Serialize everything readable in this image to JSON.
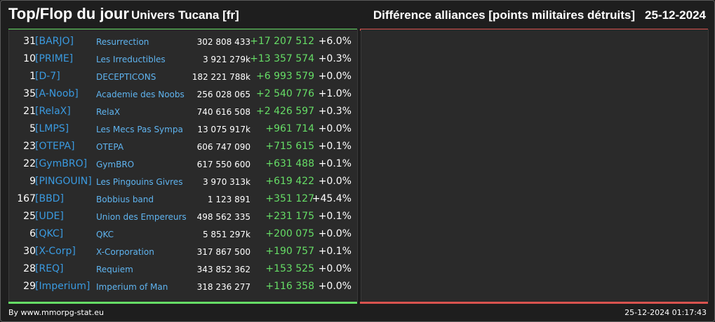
{
  "header": {
    "title": "Top/Flop du jour",
    "universe": "Univers Tucana [fr]",
    "subtitle": "Différence alliances [points militaires détruits]",
    "date": "25-12-2024"
  },
  "colors": {
    "top_bar": "#66dd66",
    "flop_bar": "#d9534f",
    "tag": "#3a9ae0",
    "name": "#5fb4f0",
    "positive": "#66dd66"
  },
  "top": [
    {
      "rank": "31",
      "tag": "[BARJO]",
      "name": "Resurrection",
      "points": "302 808 433",
      "diff": "+17 207 512",
      "pct": "+6.0%"
    },
    {
      "rank": "10",
      "tag": "[PRIME]",
      "name": "Les Irreductibles",
      "points": "3 921 279k",
      "diff": "+13 357 574",
      "pct": "+0.3%"
    },
    {
      "rank": "1",
      "tag": "[D-7]",
      "name": "DECEPTICONS",
      "points": "182 221 788k",
      "diff": "+6 993 579",
      "pct": "+0.0%"
    },
    {
      "rank": "35",
      "tag": "[A-Noob]",
      "name": "Academie des Noobs",
      "points": "256 028 065",
      "diff": "+2 540 776",
      "pct": "+1.0%"
    },
    {
      "rank": "21",
      "tag": "[RelaX]",
      "name": "RelaX",
      "points": "740 616 508",
      "diff": "+2 426 597",
      "pct": "+0.3%"
    },
    {
      "rank": "5",
      "tag": "[LMPS]",
      "name": "Les Mecs Pas Sympa",
      "points": "13 075 917k",
      "diff": "+961 714",
      "pct": "+0.0%"
    },
    {
      "rank": "23",
      "tag": "[OTEPA]",
      "name": "OTEPA",
      "points": "606 747 090",
      "diff": "+715 615",
      "pct": "+0.1%"
    },
    {
      "rank": "22",
      "tag": "[GymBRO]",
      "name": "GymBRO",
      "points": "617 550 600",
      "diff": "+631 488",
      "pct": "+0.1%"
    },
    {
      "rank": "9",
      "tag": "[PINGOUIN]",
      "name": "Les Pingouins Givres",
      "points": "3 970 313k",
      "diff": "+619 422",
      "pct": "+0.0%"
    },
    {
      "rank": "167",
      "tag": "[BBD]",
      "name": "Bobbius band",
      "points": "1 123 891",
      "diff": "+351 127",
      "pct": "+45.4%"
    },
    {
      "rank": "25",
      "tag": "[UDE]",
      "name": "Union des Empereurs",
      "points": "498 562 335",
      "diff": "+231 175",
      "pct": "+0.1%"
    },
    {
      "rank": "6",
      "tag": "[QKC]",
      "name": "QKC",
      "points": "5 851 297k",
      "diff": "+200 075",
      "pct": "+0.0%"
    },
    {
      "rank": "30",
      "tag": "[X-Corp]",
      "name": "X-Corporation",
      "points": "317 867 500",
      "diff": "+190 757",
      "pct": "+0.1%"
    },
    {
      "rank": "28",
      "tag": "[REQ]",
      "name": "Requiem",
      "points": "343 852 362",
      "diff": "+153 525",
      "pct": "+0.0%"
    },
    {
      "rank": "29",
      "tag": "[Imperium]",
      "name": "Imperium of Man",
      "points": "318 236 277",
      "diff": "+116 358",
      "pct": "+0.0%"
    }
  ],
  "footer": {
    "credit": "By www.mmorpg-stat.eu",
    "timestamp": "25-12-2024 01:17:43"
  }
}
